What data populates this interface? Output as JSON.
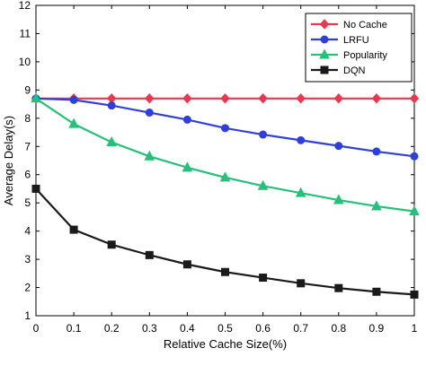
{
  "chart_data": {
    "type": "line",
    "title": "",
    "xlabel": "Relative Cache Size(%)",
    "ylabel": "Average Delay(s)",
    "x": [
      0,
      0.1,
      0.2,
      0.3,
      0.4,
      0.5,
      0.6,
      0.7,
      0.8,
      0.9,
      1
    ],
    "x_tick_labels": [
      "0",
      "0.1",
      "0.2",
      "0.3",
      "0.4",
      "0.5",
      "0.6",
      "0.7",
      "0.8",
      "0.9",
      "1"
    ],
    "y_ticks": [
      1,
      2,
      3,
      4,
      5,
      6,
      7,
      8,
      9,
      10,
      11,
      12
    ],
    "xlim": [
      0,
      1
    ],
    "ylim": [
      1,
      12
    ],
    "grid": false,
    "legend_position": "top-right",
    "series": [
      {
        "name": "No Cache",
        "color": "#e8384f",
        "marker": "diamond",
        "values": [
          8.7,
          8.7,
          8.7,
          8.7,
          8.7,
          8.7,
          8.7,
          8.7,
          8.7,
          8.7,
          8.7
        ]
      },
      {
        "name": "LRFU",
        "color": "#2f3fd8",
        "marker": "circle",
        "values": [
          8.7,
          8.65,
          8.45,
          8.2,
          7.95,
          7.65,
          7.42,
          7.22,
          7.02,
          6.82,
          6.65
        ]
      },
      {
        "name": "Popularity",
        "color": "#27c07a",
        "marker": "triangle",
        "values": [
          8.7,
          7.8,
          7.15,
          6.65,
          6.25,
          5.9,
          5.6,
          5.35,
          5.1,
          4.88,
          4.7
        ]
      },
      {
        "name": "DQN",
        "color": "#1a1a1a",
        "marker": "square",
        "values": [
          5.5,
          4.05,
          3.52,
          3.15,
          2.82,
          2.55,
          2.35,
          2.15,
          1.98,
          1.85,
          1.75
        ]
      }
    ]
  }
}
